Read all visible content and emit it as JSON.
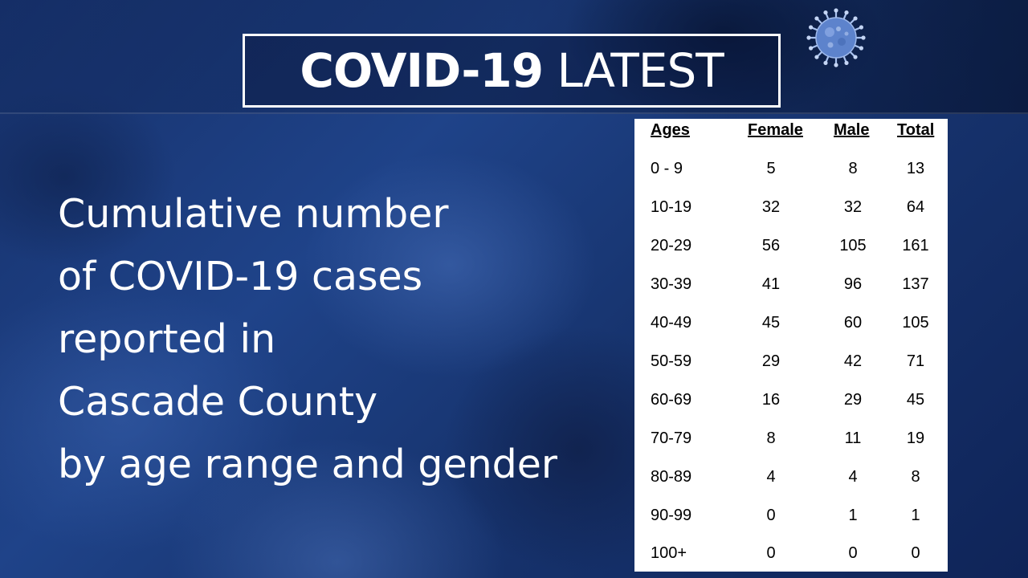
{
  "header": {
    "title_bold": "COVID-19",
    "title_light": "LATEST",
    "icon": "virus-icon"
  },
  "caption": [
    "Cumulative number",
    "of COVID-19 cases",
    "reported in",
    "Cascade County",
    "by age range and gender"
  ],
  "table": {
    "headers": [
      "Ages",
      "Female",
      "Male",
      "Total"
    ],
    "rows": [
      {
        "ages": "0 - 9",
        "female": "5",
        "male": "8",
        "total": "13"
      },
      {
        "ages": "10-19",
        "female": "32",
        "male": "32",
        "total": "64"
      },
      {
        "ages": "20-29",
        "female": "56",
        "male": "105",
        "total": "161"
      },
      {
        "ages": "30-39",
        "female": "41",
        "male": "96",
        "total": "137"
      },
      {
        "ages": "40-49",
        "female": "45",
        "male": "60",
        "total": "105"
      },
      {
        "ages": "50-59",
        "female": "29",
        "male": "42",
        "total": "71"
      },
      {
        "ages": "60-69",
        "female": "16",
        "male": "29",
        "total": "45"
      },
      {
        "ages": "70-79",
        "female": "8",
        "male": "11",
        "total": "19"
      },
      {
        "ages": "80-89",
        "female": "4",
        "male": "4",
        "total": "8"
      },
      {
        "ages": "90-99",
        "female": "0",
        "male": "1",
        "total": "1"
      },
      {
        "ages": "100+",
        "female": "0",
        "male": "0",
        "total": "0"
      }
    ]
  },
  "colors": {
    "background": "#1f4389",
    "text": "#ffffff",
    "table_bg": "#ffffff",
    "virus": "#7fa2e0"
  }
}
